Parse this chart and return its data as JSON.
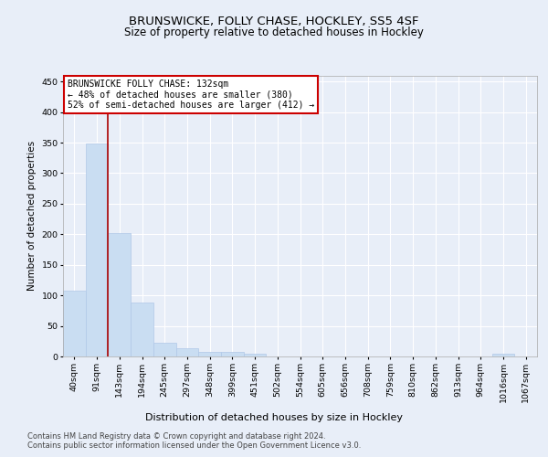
{
  "title1": "BRUNSWICKE, FOLLY CHASE, HOCKLEY, SS5 4SF",
  "title2": "Size of property relative to detached houses in Hockley",
  "xlabel": "Distribution of detached houses by size in Hockley",
  "ylabel": "Number of detached properties",
  "categories": [
    "40sqm",
    "91sqm",
    "143sqm",
    "194sqm",
    "245sqm",
    "297sqm",
    "348sqm",
    "399sqm",
    "451sqm",
    "502sqm",
    "554sqm",
    "605sqm",
    "656sqm",
    "708sqm",
    "759sqm",
    "810sqm",
    "862sqm",
    "913sqm",
    "964sqm",
    "1016sqm",
    "1067sqm"
  ],
  "values": [
    107,
    348,
    202,
    88,
    22,
    13,
    8,
    8,
    5,
    0,
    0,
    0,
    0,
    0,
    0,
    0,
    0,
    0,
    0,
    4,
    0
  ],
  "bar_color": "#c9ddf2",
  "bar_edge_color": "#b0c8e8",
  "property_label": "BRUNSWICKE FOLLY CHASE: 132sqm",
  "pct_smaller": 48,
  "count_smaller": 380,
  "pct_larger": 52,
  "count_larger": 412,
  "vline_color": "#aa0000",
  "vline_x": 1.5,
  "ylim": [
    0,
    460
  ],
  "yticks": [
    0,
    50,
    100,
    150,
    200,
    250,
    300,
    350,
    400,
    450
  ],
  "footer1": "Contains HM Land Registry data © Crown copyright and database right 2024.",
  "footer2": "Contains public sector information licensed under the Open Government Licence v3.0.",
  "bg_color": "#e8eef8",
  "title_fontsize": 9.5,
  "subtitle_fontsize": 8.5,
  "tick_fontsize": 6.8,
  "label_fontsize": 8,
  "ylabel_fontsize": 7.5
}
